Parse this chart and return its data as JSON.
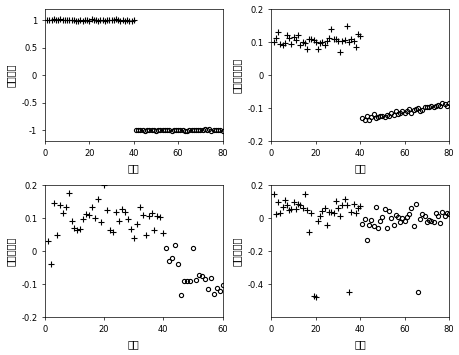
{
  "ylabels": [
    "类别标签",
    "迁移谱特征值",
    "光谱特征值",
    "质谱特征值"
  ],
  "xlabel": "样本",
  "n_class1": 40,
  "n_class2": 40,
  "background": "#ffffff",
  "fontsize_label": 7,
  "fontsize_tick": 6,
  "tl_xlim": [
    0,
    80
  ],
  "tl_ylim": [
    -1.2,
    1.2
  ],
  "tl_yticks": [
    -1,
    -0.5,
    0,
    0.5,
    1
  ],
  "tl_xticks": [
    0,
    20,
    40,
    60,
    80
  ],
  "tr_xlim": [
    0,
    80
  ],
  "tr_ylim": [
    -0.2,
    0.2
  ],
  "tr_yticks": [
    -0.2,
    -0.1,
    0,
    0.1,
    0.2
  ],
  "tr_xticks": [
    0,
    20,
    40,
    60,
    80
  ],
  "bl_xlim": [
    0,
    60
  ],
  "bl_ylim": [
    -0.2,
    0.2
  ],
  "bl_yticks": [
    -0.2,
    -0.1,
    0,
    0.1,
    0.2
  ],
  "bl_xticks": [
    0,
    20,
    40,
    60
  ],
  "br_xlim": [
    0,
    80
  ],
  "br_ylim": [
    -0.6,
    0.2
  ],
  "br_yticks": [
    -0.4,
    -0.2,
    0,
    0.2
  ],
  "br_xticks": [
    0,
    20,
    40,
    60,
    80
  ]
}
